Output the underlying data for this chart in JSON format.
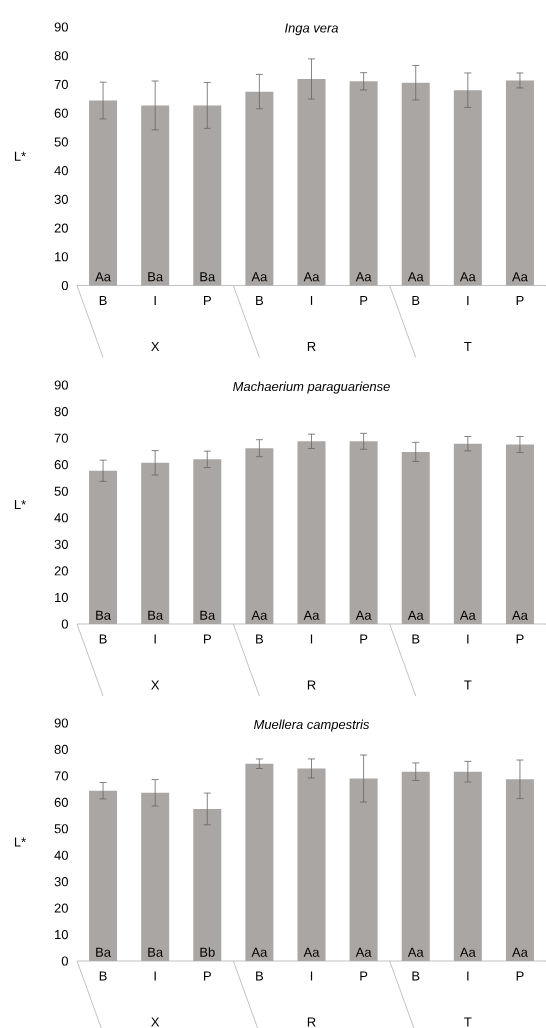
{
  "chart_data": [
    {
      "type": "bar",
      "title": "Inga vera",
      "ylabel": "L*",
      "categories": [
        "B",
        "I",
        "P",
        "B",
        "I",
        "P",
        "B",
        "I",
        "P"
      ],
      "color": "#aaa6a4",
      "values": [
        64.4,
        62.7,
        62.7,
        67.5,
        71.9,
        71.1,
        70.6,
        68,
        71.4
      ],
      "errors": [
        6.4,
        8.5,
        8,
        6,
        7,
        3,
        6,
        6,
        2.6
      ],
      "value_labels": [
        "Aa",
        "Ba",
        "Ba",
        "Aa",
        "Aa",
        "Aa",
        "Aa",
        "Aa",
        "Aa"
      ],
      "annotations": [
        "X",
        "R",
        "T"
      ],
      "ylim": [
        0,
        90
      ],
      "yticks": [
        0,
        10,
        20,
        30,
        40,
        50,
        60,
        70,
        80,
        90
      ]
    },
    {
      "type": "bar",
      "title": "Machaerium paraguariense",
      "ylabel": "L*",
      "categories": [
        "B",
        "I",
        "P",
        "B",
        "I",
        "P",
        "B",
        "I",
        "P"
      ],
      "color": "#aaa6a4",
      "values": [
        57.7,
        60.7,
        62,
        66.2,
        68.8,
        68.8,
        64.8,
        67.9,
        67.6
      ],
      "errors": [
        4,
        4.6,
        3.1,
        3.2,
        2.7,
        3,
        3.6,
        2.7,
        3
      ],
      "value_labels": [
        "Ba",
        "Ba",
        "Ba",
        "Aa",
        "Aa",
        "Aa",
        "Aa",
        "Aa",
        "Aa"
      ],
      "annotations": [
        "X",
        "R",
        "T"
      ],
      "ylim": [
        0,
        90
      ],
      "yticks": [
        0,
        10,
        20,
        30,
        40,
        50,
        60,
        70,
        80,
        90
      ]
    },
    {
      "type": "bar",
      "title": "Muellera campestris",
      "ylabel": "L*",
      "categories": [
        "B",
        "I",
        "P",
        "B",
        "I",
        "P",
        "B",
        "I",
        "P"
      ],
      "color": "#aaa6a4",
      "values": [
        64.4,
        63.6,
        57.5,
        74.6,
        72.8,
        69,
        71.6,
        71.6,
        68.7
      ],
      "errors": [
        3.1,
        5,
        6,
        1.8,
        3.6,
        8.9,
        3.3,
        3.9,
        7.3
      ],
      "value_labels": [
        "Ba",
        "Ba",
        "Bb",
        "Aa",
        "Aa",
        "Aa",
        "Aa",
        "Aa",
        "Aa"
      ],
      "annotations": [
        "X",
        "R",
        "T"
      ],
      "ylim": [
        0,
        90
      ],
      "yticks": [
        0,
        10,
        20,
        30,
        40,
        50,
        60,
        70,
        80,
        90
      ]
    }
  ]
}
